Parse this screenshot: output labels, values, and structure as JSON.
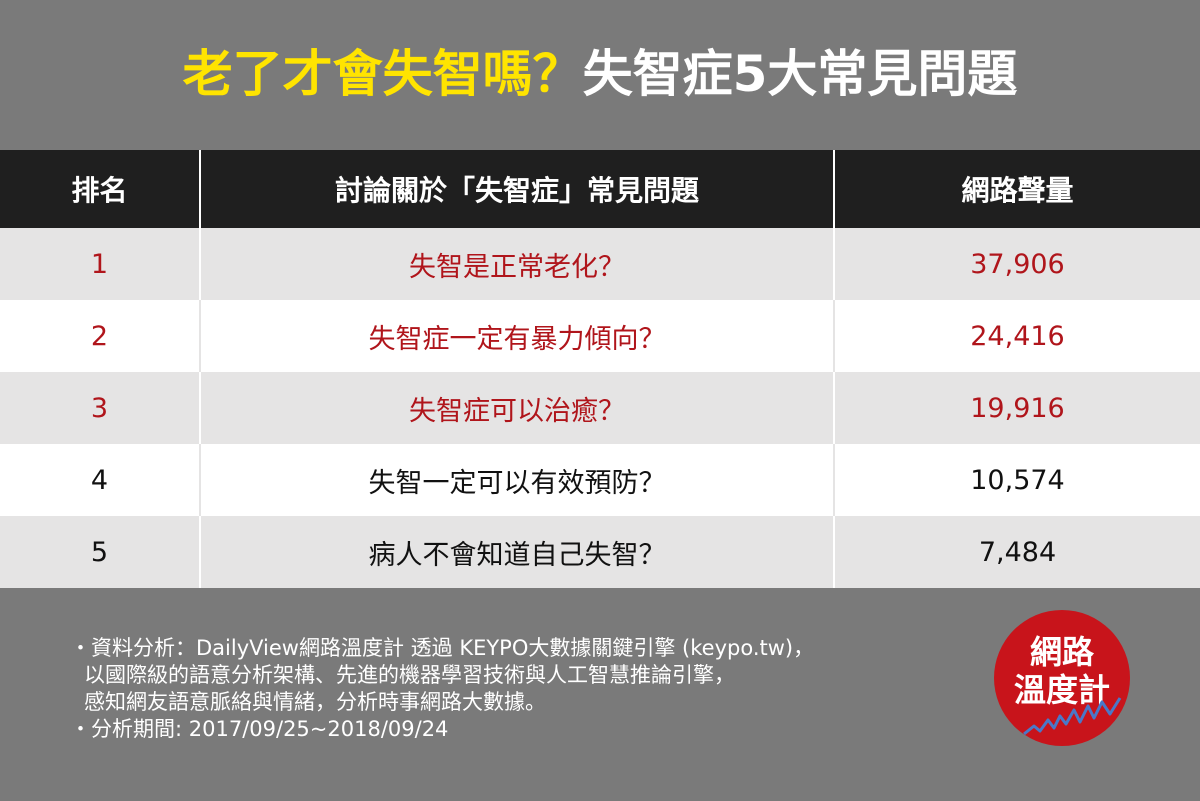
{
  "title": {
    "highlight": "老了才會失智嗎？",
    "rest": "失智症5大常見問題"
  },
  "table": {
    "headers": [
      "排名",
      "討論關於「失智症」常見問題",
      "網路聲量"
    ],
    "rows": [
      {
        "rank": "1",
        "topic": "失智是正常老化？",
        "volume": "37,906"
      },
      {
        "rank": "2",
        "topic": "失智症一定有暴力傾向？",
        "volume": "24,416"
      },
      {
        "rank": "3",
        "topic": "失智症可以治癒？",
        "volume": "19,916"
      },
      {
        "rank": "4",
        "topic": "失智一定可以有效預防？",
        "volume": "10,574"
      },
      {
        "rank": "5",
        "topic": "病人不會知道自己失智？",
        "volume": "7,484"
      }
    ]
  },
  "footer": {
    "line1": "・資料分析：DailyView網路溫度計 透過 KEYPO大數據關鍵引擎 (keypo.tw)，",
    "line2": "以國際級的語意分析架構、先進的機器學習技術與人工智慧推論引擎，",
    "line3": "感知網友語意脈絡與情緒，分析時事網路大數據。",
    "line4": "・分析期間: 2017/09/25~2018/09/24"
  },
  "logo": {
    "line1": "網路",
    "line2": "溫度計"
  },
  "colors": {
    "background": "#7a7a7a",
    "header_bg": "#1f1f1f",
    "highlight": "#ffe400",
    "top3_text": "#b0151b",
    "logo_red": "#c8141b"
  }
}
